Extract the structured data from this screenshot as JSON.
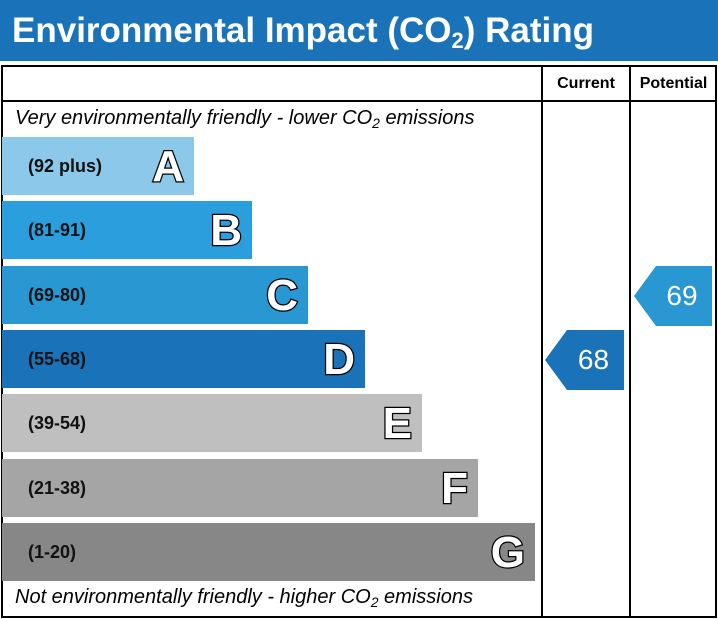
{
  "title": {
    "prefix": "Environmental Impact (CO",
    "sub": "2",
    "suffix": ") Rating"
  },
  "columns": {
    "current": "Current",
    "potential": "Potential"
  },
  "captions": {
    "top": {
      "prefix": "Very environmentally friendly - lower CO",
      "sub": "2",
      "suffix": " emissions"
    },
    "bottom": {
      "prefix": "Not environmentally friendly - higher CO",
      "sub": "2",
      "suffix": " emissions"
    }
  },
  "chart_data": {
    "type": "bar",
    "bands": [
      {
        "letter": "A",
        "range": "(92 plus)",
        "min": 92,
        "max": 100,
        "color": "#8cc8ea"
      },
      {
        "letter": "B",
        "range": "(81-91)",
        "min": 81,
        "max": 91,
        "color": "#2b9fde"
      },
      {
        "letter": "C",
        "range": "(69-80)",
        "min": 69,
        "max": 80,
        "color": "#2897d2"
      },
      {
        "letter": "D",
        "range": "(55-68)",
        "min": 55,
        "max": 68,
        "color": "#1a73b8"
      },
      {
        "letter": "E",
        "range": "(39-54)",
        "min": 39,
        "max": 54,
        "color": "#bfbfbf"
      },
      {
        "letter": "F",
        "range": "(21-38)",
        "min": 21,
        "max": 38,
        "color": "#a5a5a5"
      },
      {
        "letter": "G",
        "range": "(1-20)",
        "min": 1,
        "max": 20,
        "color": "#878787"
      }
    ],
    "current": {
      "value": 68,
      "band": "D",
      "color": "#1a73b8"
    },
    "potential": {
      "value": 69,
      "band": "C",
      "color": "#2897d2"
    }
  }
}
